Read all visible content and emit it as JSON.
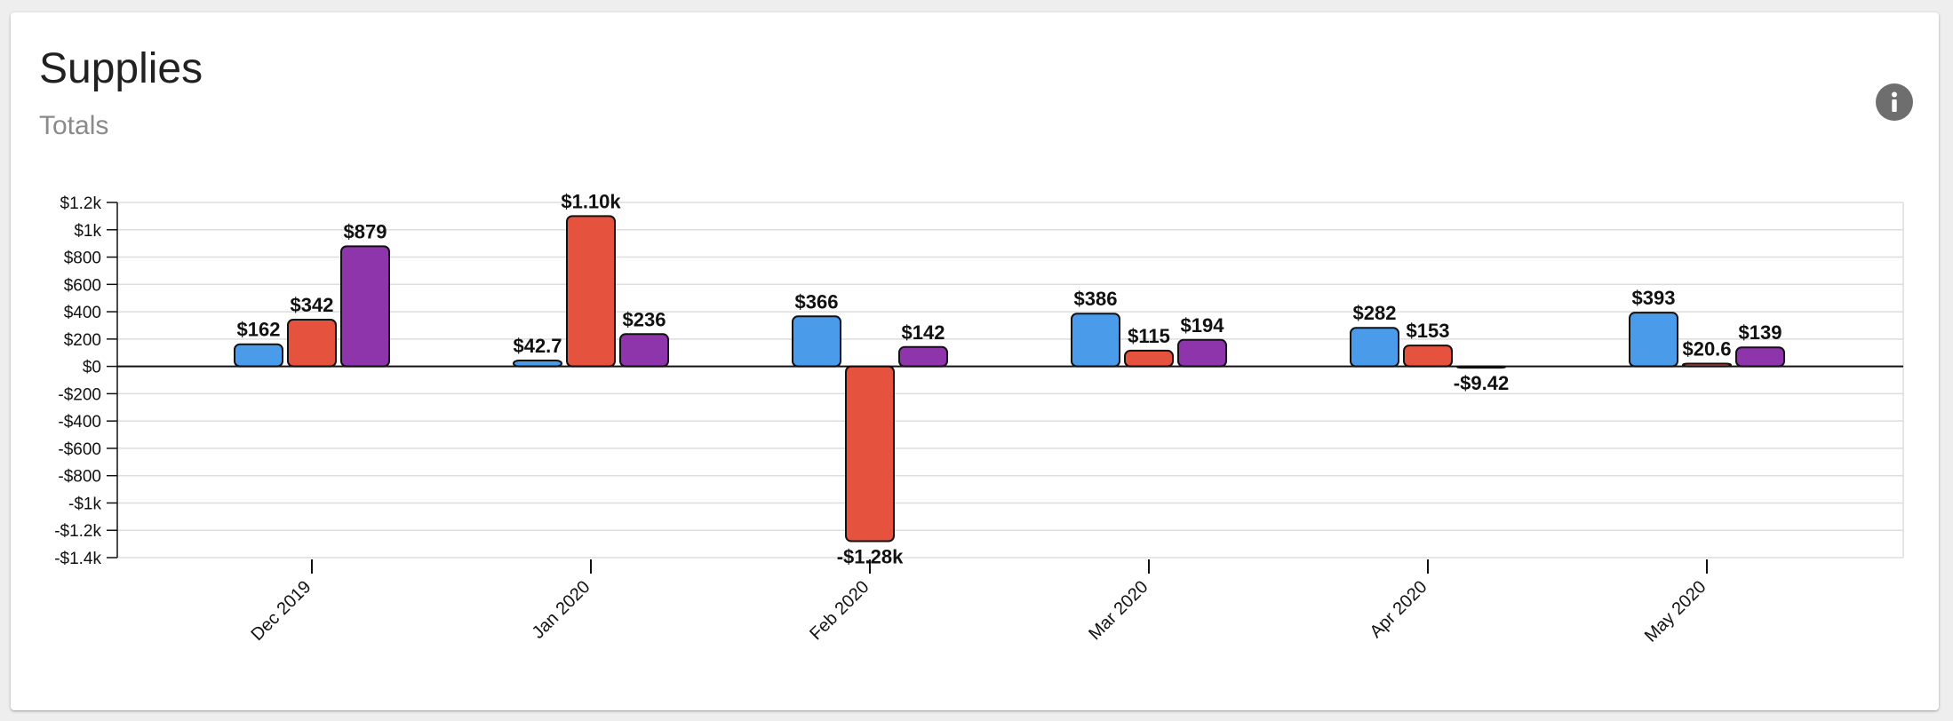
{
  "header": {
    "title": "Supplies",
    "subtitle": "Totals"
  },
  "icons": {
    "info": "info-icon"
  },
  "colors": {
    "series": [
      "#4a9bea",
      "#e5533f",
      "#8e35ab"
    ],
    "grid": "#dddddd",
    "axis": "#111111"
  },
  "chart_data": {
    "type": "bar",
    "categories": [
      "Dec 2019",
      "Jan 2020",
      "Feb 2020",
      "Mar 2020",
      "Apr 2020",
      "May 2020"
    ],
    "series": [
      {
        "values": [
          162,
          42.7,
          366,
          386,
          282,
          393
        ],
        "labels": [
          "$162",
          "$42.7",
          "$366",
          "$386",
          "$282",
          "$393"
        ]
      },
      {
        "values": [
          342,
          1100,
          -1280,
          115,
          153,
          20.6
        ],
        "labels": [
          "$342",
          "$1.10k",
          "-$1.28k",
          "$115",
          "$153",
          "$20.6"
        ]
      },
      {
        "values": [
          879,
          236,
          142,
          194,
          -9.42,
          139
        ],
        "labels": [
          "$879",
          "$236",
          "$142",
          "$194",
          "-$9.42",
          "$139"
        ]
      }
    ],
    "ylim": [
      -1400,
      1200
    ],
    "yticks": [
      1200,
      1000,
      800,
      600,
      400,
      200,
      0,
      -200,
      -400,
      -600,
      -800,
      -1000,
      -1200,
      -1400
    ],
    "ytick_labels": [
      "$1.2k",
      "$1k",
      "$800",
      "$600",
      "$400",
      "$200",
      "$0",
      "-$200",
      "-$400",
      "-$600",
      "-$800",
      "-$1k",
      "-$1.2k",
      "-$1.4k"
    ],
    "grid": true,
    "legend": "none"
  }
}
